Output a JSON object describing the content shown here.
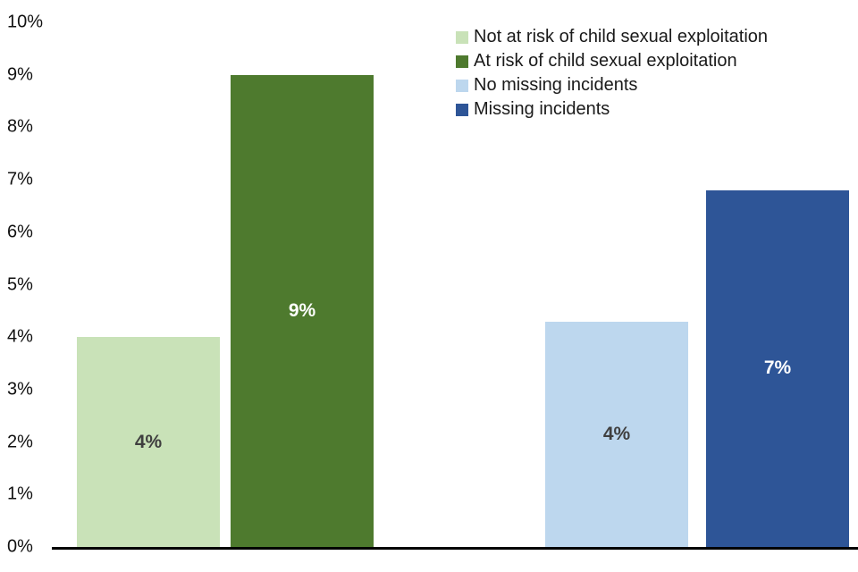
{
  "chart_data": {
    "type": "bar",
    "title": "",
    "xlabel": "",
    "ylabel": "",
    "ylim": [
      0,
      10
    ],
    "grid": false,
    "legend_position": "top-right",
    "yticks": [
      "0%",
      "1%",
      "2%",
      "3%",
      "4%",
      "5%",
      "6%",
      "7%",
      "8%",
      "9%",
      "10%"
    ],
    "series": [
      {
        "name": "Not at risk of child sexual exploitation",
        "value": 4.0,
        "data_label": "4%",
        "color": "#c9e2b8",
        "label_color": "#3f3f3f"
      },
      {
        "name": "At risk of child sexual exploitation",
        "value": 9.0,
        "data_label": "9%",
        "color": "#4e7a2e",
        "label_color": "#ffffff"
      },
      {
        "name": "No missing incidents",
        "value": 4.3,
        "data_label": "4%",
        "color": "#bdd7ee",
        "label_color": "#3f3f3f"
      },
      {
        "name": "Missing incidents",
        "value": 6.8,
        "data_label": "7%",
        "color": "#2e5597",
        "label_color": "#ffffff"
      }
    ]
  }
}
